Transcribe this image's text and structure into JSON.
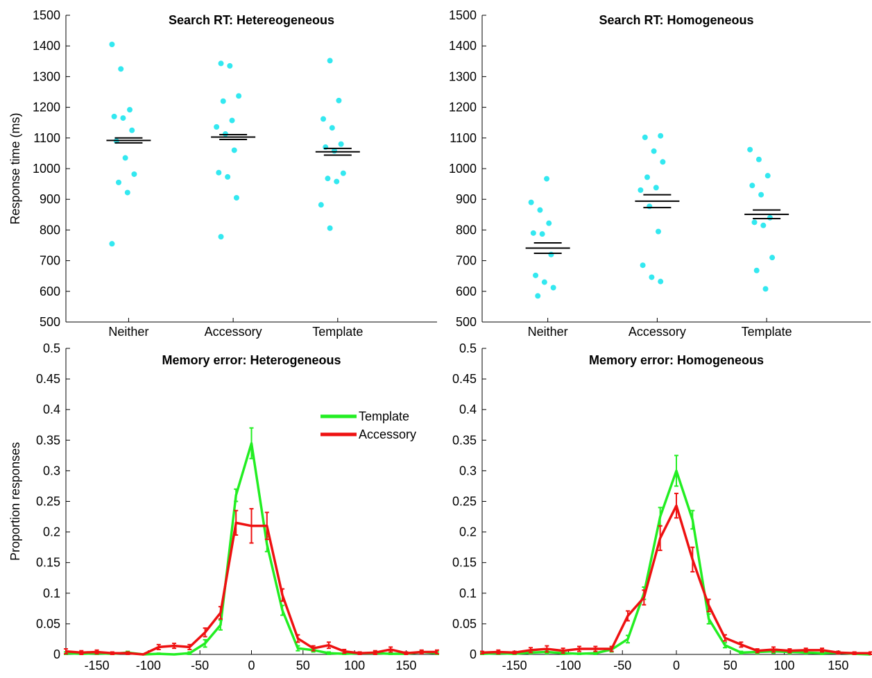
{
  "colors": {
    "points": "#33e8f0",
    "template": "#22ee22",
    "accessory": "#ee1111",
    "mean_bar": "#000000"
  },
  "chart_data": [
    {
      "type": "scatter",
      "title": "Search RT: Hetereogeneous",
      "ylabel": "Response time (ms)",
      "categories": [
        "Neither",
        "Accessory",
        "Template"
      ],
      "ylim": [
        500,
        1500
      ],
      "yticks": [
        500,
        600,
        700,
        800,
        900,
        1000,
        1100,
        1200,
        1300,
        1400,
        1500
      ],
      "points": [
        [
          1405,
          1325,
          1192,
          1170,
          1165,
          1125,
          1090,
          1035,
          982,
          955,
          922,
          755
        ],
        [
          1343,
          1335,
          1237,
          1220,
          1157,
          1136,
          1113,
          1060,
          987,
          973,
          905,
          778
        ],
        [
          1352,
          1222,
          1162,
          1133,
          1080,
          1070,
          1058,
          985,
          968,
          958,
          882,
          806
        ]
      ],
      "means": [
        1092,
        1103,
        1055
      ],
      "sems": [
        8,
        8,
        11
      ]
    },
    {
      "type": "scatter",
      "title": "Search RT: Homogeneous",
      "ylabel": "",
      "categories": [
        "Neither",
        "Accessory",
        "Template"
      ],
      "ylim": [
        500,
        1500
      ],
      "yticks": [
        500,
        600,
        700,
        800,
        900,
        1000,
        1100,
        1200,
        1300,
        1400,
        1500
      ],
      "points": [
        [
          967,
          890,
          865,
          822,
          790,
          787,
          720,
          652,
          630,
          612,
          585
        ],
        [
          1107,
          1102,
          1057,
          1022,
          972,
          938,
          930,
          877,
          795,
          685,
          646,
          632
        ],
        [
          1062,
          1030,
          977,
          945,
          915,
          840,
          825,
          815,
          710,
          668,
          608
        ]
      ],
      "means": [
        741,
        894,
        851
      ],
      "sems": [
        17,
        21,
        14
      ]
    },
    {
      "type": "line",
      "title": "Memory error: Heterogeneous",
      "ylabel": "Proportion responses",
      "xlim": [
        -180,
        180
      ],
      "xticks": [
        -150,
        -100,
        -50,
        0,
        50,
        100,
        150
      ],
      "ylim": [
        0,
        0.5
      ],
      "yticks": [
        0,
        0.05,
        0.1,
        0.15,
        0.2,
        0.25,
        0.3,
        0.35,
        0.4,
        0.45,
        0.5
      ],
      "yticklabels": [
        "0",
        "0.05",
        "0.1",
        "0.15",
        "0.2",
        "0.25",
        "0.3",
        "0.35",
        "0.4",
        "0.45",
        "0.5"
      ],
      "legend": "upper-right",
      "x": [
        -180,
        -165,
        -150,
        -135,
        -120,
        -105,
        -90,
        -75,
        -60,
        -45,
        -30,
        -15,
        0,
        15,
        30,
        45,
        60,
        75,
        90,
        105,
        120,
        135,
        150,
        165,
        180
      ],
      "series": [
        {
          "name": "Template",
          "values": [
            0.002,
            0.001,
            0.002,
            0.001,
            0.003,
            0.0,
            0.001,
            0.0,
            0.002,
            0.018,
            0.048,
            0.26,
            0.345,
            0.18,
            0.072,
            0.01,
            0.007,
            0.002,
            0.001,
            0.002,
            0.002,
            0.001,
            0.001,
            0.004,
            0.002
          ],
          "errors": [
            0.002,
            0.001,
            0.002,
            0.001,
            0.002,
            0.0,
            0.001,
            0.0,
            0.002,
            0.006,
            0.008,
            0.01,
            0.025,
            0.012,
            0.008,
            0.004,
            0.003,
            0.002,
            0.001,
            0.002,
            0.002,
            0.001,
            0.001,
            0.002,
            0.002
          ]
        },
        {
          "name": "Accessory",
          "values": [
            0.005,
            0.003,
            0.004,
            0.002,
            0.002,
            0.0,
            0.012,
            0.014,
            0.012,
            0.036,
            0.068,
            0.215,
            0.21,
            0.21,
            0.097,
            0.026,
            0.01,
            0.015,
            0.005,
            0.002,
            0.003,
            0.008,
            0.002,
            0.004,
            0.004
          ],
          "errors": [
            0.004,
            0.003,
            0.003,
            0.002,
            0.002,
            0.0,
            0.004,
            0.004,
            0.004,
            0.007,
            0.01,
            0.02,
            0.028,
            0.022,
            0.01,
            0.006,
            0.004,
            0.005,
            0.003,
            0.002,
            0.003,
            0.004,
            0.002,
            0.003,
            0.003
          ]
        }
      ]
    },
    {
      "type": "line",
      "title": "Memory error: Homogeneous",
      "ylabel": "",
      "xlim": [
        -180,
        180
      ],
      "xticks": [
        -150,
        -100,
        -50,
        0,
        50,
        100,
        150
      ],
      "ylim": [
        0,
        0.5
      ],
      "yticks": [
        0,
        0.05,
        0.1,
        0.15,
        0.2,
        0.25,
        0.3,
        0.35,
        0.4,
        0.45,
        0.5
      ],
      "yticklabels": [
        "0",
        "0.05",
        "0.1",
        "0.15",
        "0.2",
        "0.25",
        "0.3",
        "0.35",
        "0.4",
        "0.45",
        "0.5"
      ],
      "x": [
        -180,
        -165,
        -150,
        -135,
        -120,
        -105,
        -90,
        -75,
        -60,
        -45,
        -30,
        -15,
        0,
        15,
        30,
        45,
        60,
        75,
        90,
        105,
        120,
        135,
        150,
        165,
        180
      ],
      "series": [
        {
          "name": "Template",
          "values": [
            0.001,
            0.002,
            0.001,
            0.003,
            0.004,
            0.002,
            0.001,
            0.002,
            0.008,
            0.025,
            0.1,
            0.225,
            0.3,
            0.22,
            0.058,
            0.015,
            0.003,
            0.004,
            0.005,
            0.004,
            0.003,
            0.002,
            0.003,
            0.001,
            0.0
          ],
          "errors": [
            0.002,
            0.002,
            0.001,
            0.002,
            0.003,
            0.002,
            0.001,
            0.002,
            0.004,
            0.006,
            0.01,
            0.015,
            0.025,
            0.015,
            0.008,
            0.004,
            0.002,
            0.003,
            0.003,
            0.003,
            0.002,
            0.002,
            0.002,
            0.001,
            0.0
          ]
        },
        {
          "name": "Accessory",
          "values": [
            0.003,
            0.004,
            0.003,
            0.007,
            0.009,
            0.006,
            0.009,
            0.009,
            0.009,
            0.063,
            0.093,
            0.19,
            0.243,
            0.155,
            0.08,
            0.027,
            0.016,
            0.006,
            0.008,
            0.006,
            0.007,
            0.007,
            0.003,
            0.002,
            0.002
          ],
          "errors": [
            0.002,
            0.003,
            0.002,
            0.004,
            0.005,
            0.004,
            0.004,
            0.004,
            0.004,
            0.008,
            0.012,
            0.02,
            0.02,
            0.02,
            0.01,
            0.005,
            0.004,
            0.003,
            0.004,
            0.003,
            0.003,
            0.003,
            0.002,
            0.002,
            0.002
          ]
        }
      ]
    }
  ]
}
